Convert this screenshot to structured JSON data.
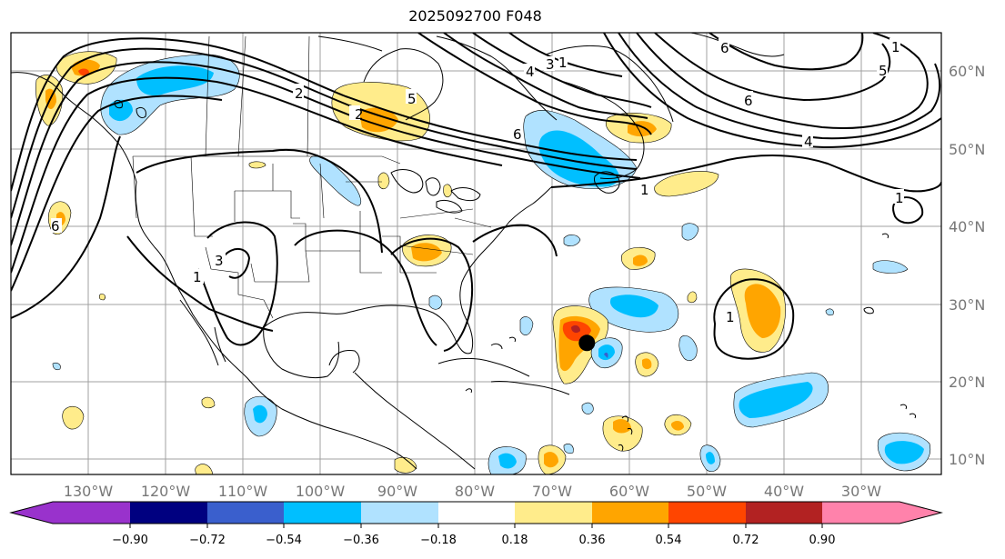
{
  "title": "2025092700 F048",
  "map": {
    "lon_labels": [
      "130°W",
      "120°W",
      "110°W",
      "100°W",
      "90°W",
      "80°W",
      "70°W",
      "60°W",
      "50°W",
      "40°W",
      "30°W"
    ],
    "lat_labels": [
      "60°N",
      "50°N",
      "40°N",
      "30°N",
      "20°N",
      "10°N"
    ],
    "contour_labels": [
      "1",
      "2",
      "3",
      "4",
      "5",
      "6"
    ],
    "marker": {
      "lon": -65.5,
      "lat": 25.0
    }
  },
  "colorbar": {
    "ticks": [
      "−0.90",
      "−0.72",
      "−0.54",
      "−0.36",
      "−0.18",
      "0.18",
      "0.36",
      "0.54",
      "0.72",
      "0.90"
    ],
    "colors": [
      "#9932cc",
      "#000080",
      "#3a5fcd",
      "#00bfff",
      "#b0e2ff",
      "#ffffff",
      "#ffec8b",
      "#ffa500",
      "#ff4500",
      "#b22222",
      "#ff82ab"
    ]
  }
}
